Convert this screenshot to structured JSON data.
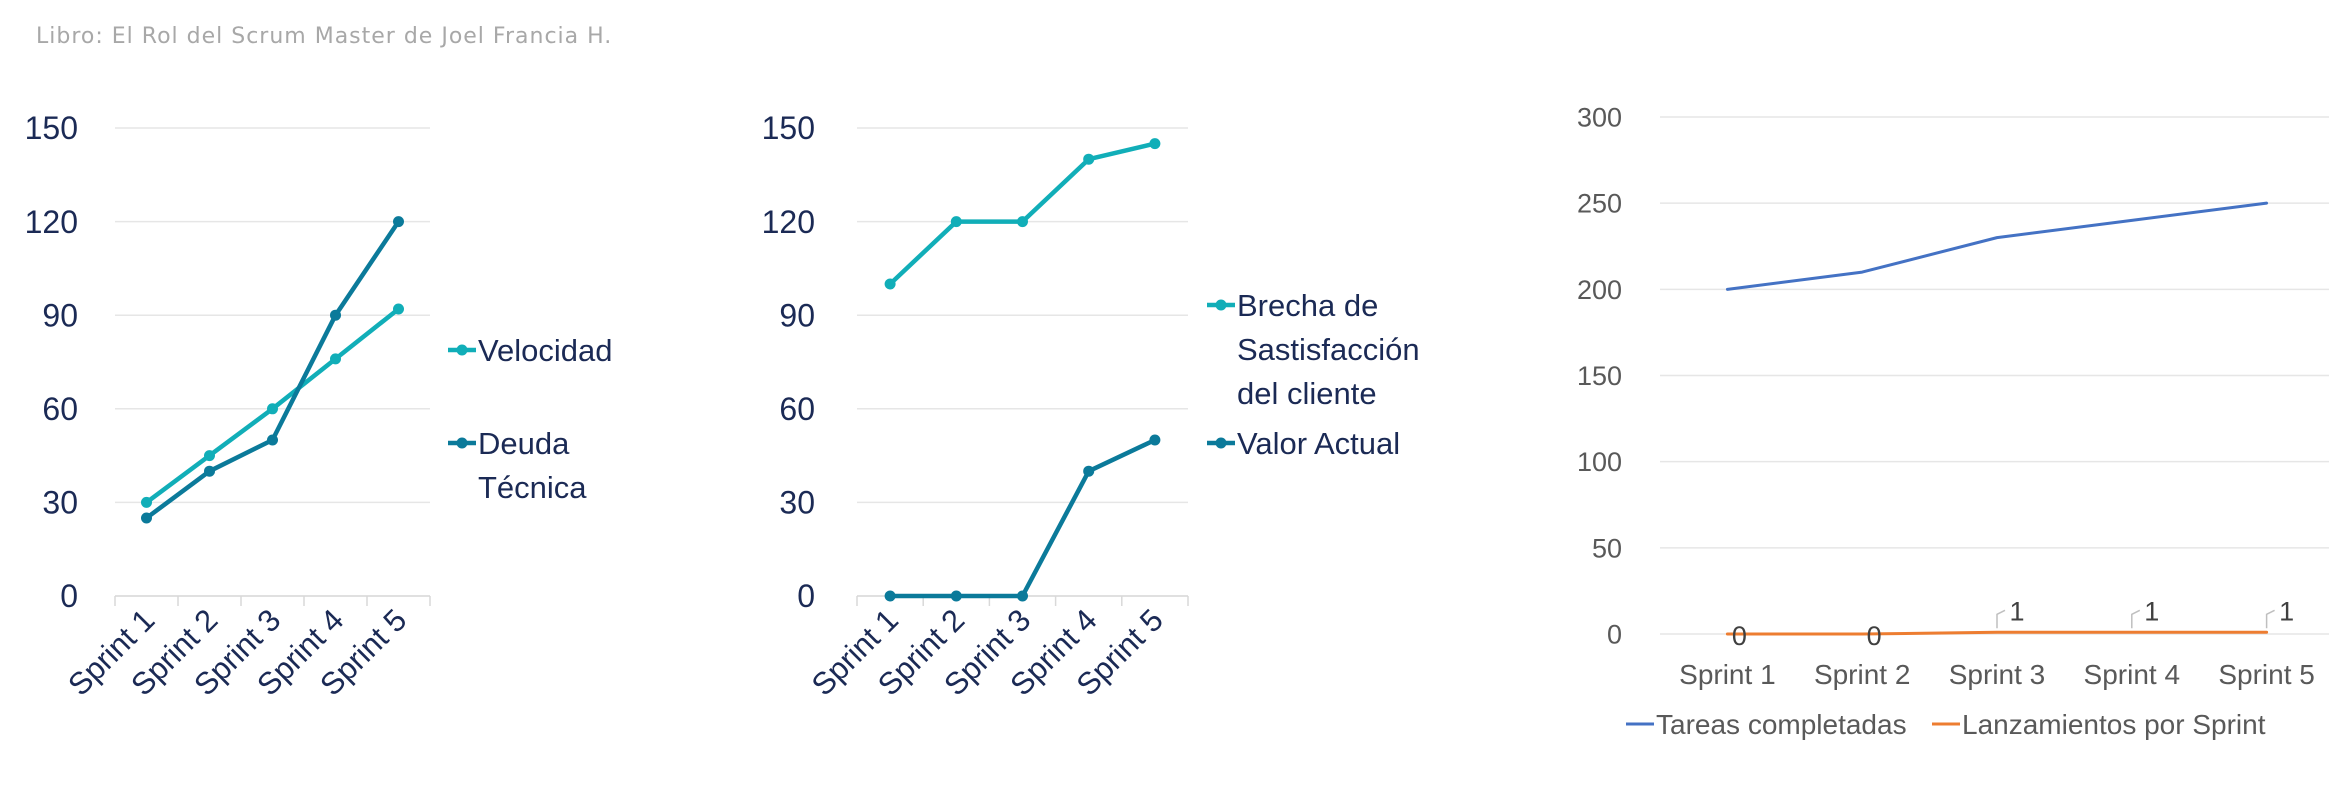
{
  "source": "Libro: El Rol del Scrum Master de Joel Francia H.",
  "colors": {
    "teal_light": "#11aeb8",
    "teal_dark": "#0b7a9a",
    "blue": "#4472c4",
    "orange": "#ed7d31",
    "axis_text_dark": "#1b2a55",
    "axis_text_gray": "#595959",
    "grid": "#e6e6e6"
  },
  "chart_data": [
    {
      "type": "line",
      "categories": [
        "Sprint 1",
        "Sprint 2",
        "Sprint 3",
        "Sprint 4",
        "Sprint 5"
      ],
      "yticks": [
        "0",
        "30",
        "60",
        "90",
        "120",
        "150"
      ],
      "ylim": [
        0,
        150
      ],
      "legend_position": "right",
      "series": [
        {
          "name": "Velocidad",
          "values": [
            30,
            45,
            60,
            76,
            92
          ]
        },
        {
          "name": "Deuda Técnica",
          "values": [
            25,
            40,
            50,
            90,
            120
          ]
        }
      ]
    },
    {
      "type": "line",
      "categories": [
        "Sprint 1",
        "Sprint 2",
        "Sprint 3",
        "Sprint 4",
        "Sprint 5"
      ],
      "yticks": [
        "0",
        "30",
        "60",
        "90",
        "120",
        "150"
      ],
      "ylim": [
        0,
        150
      ],
      "legend_position": "right",
      "series": [
        {
          "name": "Brecha de Sastisfacción del cliente",
          "values": [
            100,
            120,
            120,
            140,
            145
          ]
        },
        {
          "name": "Valor Actual",
          "values": [
            0,
            0,
            0,
            40,
            50
          ]
        }
      ]
    },
    {
      "type": "line",
      "categories": [
        "Sprint 1",
        "Sprint 2",
        "Sprint 3",
        "Sprint 4",
        "Sprint 5"
      ],
      "yticks": [
        "0",
        "50",
        "100",
        "150",
        "200",
        "250",
        "300"
      ],
      "ylim": [
        0,
        300
      ],
      "legend_position": "bottom",
      "series": [
        {
          "name": "Tareas completadas",
          "values": [
            200,
            210,
            230,
            240,
            250
          ]
        },
        {
          "name": "Lanzamientos por Sprint",
          "values": [
            0,
            0,
            1,
            1,
            1
          ],
          "data_labels": [
            "0",
            "0",
            "1",
            "1",
            "1"
          ]
        }
      ]
    }
  ]
}
